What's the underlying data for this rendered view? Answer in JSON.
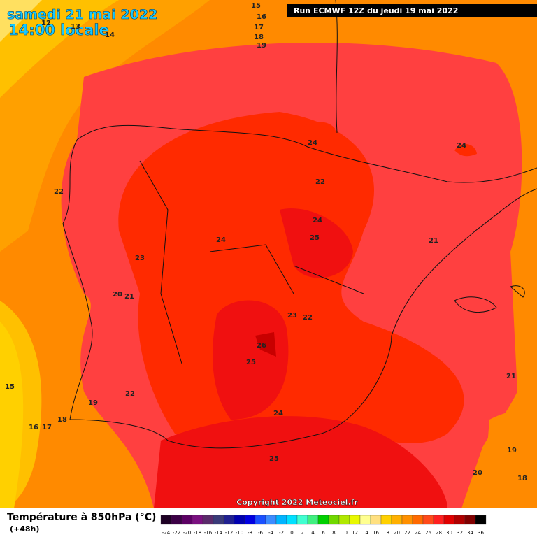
{
  "header": {
    "date": "samedi 21 mai 2022",
    "time": "14:00 locale",
    "run": "Run ECMWF 12Z du jeudi 19 mai 2022"
  },
  "contour_labels": [
    15,
    16,
    17,
    18,
    19,
    12,
    13,
    14,
    24,
    24,
    22,
    22,
    24,
    25,
    24,
    23,
    21,
    20,
    21,
    23,
    22,
    26,
    25,
    22,
    21,
    19,
    15,
    16,
    17,
    18,
    24,
    25,
    19,
    20,
    18
  ],
  "copyright": "Copyright 2022 Meteociel.fr",
  "legend": {
    "title": "Température à 850hPa (°C)",
    "subtitle": "(+48h)",
    "ticks": [
      -24,
      -22,
      -20,
      -18,
      -16,
      -14,
      -12,
      -10,
      -8,
      -6,
      -4,
      -2,
      0,
      2,
      4,
      6,
      8,
      10,
      12,
      14,
      16,
      18,
      20,
      22,
      24,
      26,
      28,
      30,
      32,
      34,
      36
    ],
    "colors": [
      "#1e0024",
      "#3c0046",
      "#5c0064",
      "#7a1080",
      "#5a2a6a",
      "#3a3a78",
      "#202090",
      "#0000b0",
      "#0000e0",
      "#1a50ff",
      "#3c8cff",
      "#00b4ff",
      "#00e0ff",
      "#40ffd0",
      "#40f080",
      "#00d000",
      "#70d800",
      "#b0e800",
      "#e8f800",
      "#ffff90",
      "#ffe080",
      "#ffd000",
      "#ffb000",
      "#ff9000",
      "#ff6a00",
      "#ff4a1a",
      "#ff2020",
      "#e00000",
      "#b00000",
      "#800000",
      "#000000"
    ]
  }
}
